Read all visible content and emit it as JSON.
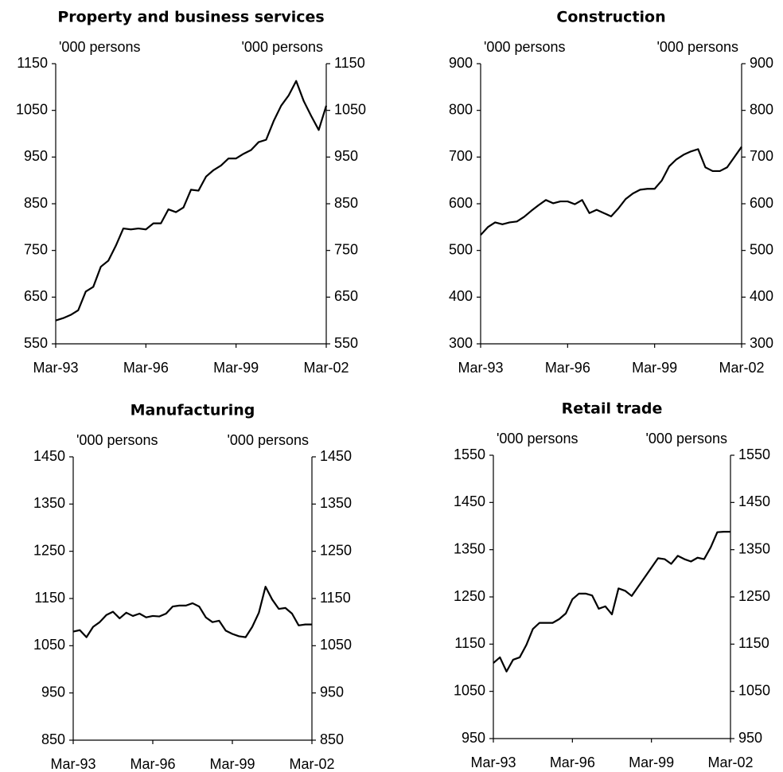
{
  "chart_data": [
    {
      "type": "line",
      "title": "Property and business services",
      "ylabel": "'000 persons",
      "y2label": "'000 persons",
      "categories": [
        "Mar-93",
        null,
        null,
        null,
        null,
        null,
        null,
        null,
        null,
        null,
        null,
        null,
        "Mar-96",
        null,
        null,
        null,
        null,
        null,
        null,
        null,
        null,
        null,
        null,
        null,
        "Mar-99",
        null,
        null,
        null,
        null,
        null,
        null,
        null,
        null,
        null,
        null,
        null,
        "Mar-02"
      ],
      "values": [
        600,
        605,
        612,
        622,
        662,
        672,
        715,
        728,
        760,
        797,
        795,
        797,
        795,
        808,
        808,
        838,
        832,
        842,
        880,
        878,
        908,
        922,
        932,
        947,
        947,
        957,
        965,
        982,
        987,
        1027,
        1060,
        1082,
        1113,
        1070,
        1038,
        1008,
        1060
      ],
      "color": "#000000",
      "ylim": [
        550,
        1150
      ],
      "yticks": [
        550,
        650,
        750,
        850,
        950,
        1050,
        1150
      ],
      "y2lim": [
        550,
        1150
      ],
      "y2ticks": [
        550,
        650,
        750,
        850,
        950,
        1050,
        1150
      ]
    },
    {
      "type": "line",
      "title": "Construction",
      "ylabel": "'000 persons",
      "y2label": "'000 persons",
      "categories": [
        "Mar-93",
        null,
        null,
        null,
        null,
        null,
        null,
        null,
        null,
        null,
        null,
        null,
        "Mar-96",
        null,
        null,
        null,
        null,
        null,
        null,
        null,
        null,
        null,
        null,
        null,
        "Mar-99",
        null,
        null,
        null,
        null,
        null,
        null,
        null,
        null,
        null,
        null,
        null,
        "Mar-02"
      ],
      "values": [
        533,
        550,
        560,
        556,
        560,
        562,
        572,
        585,
        597,
        608,
        601,
        605,
        605,
        599,
        608,
        580,
        587,
        580,
        573,
        590,
        610,
        622,
        630,
        632,
        632,
        650,
        680,
        695,
        705,
        712,
        717,
        678,
        670,
        670,
        678,
        700,
        722
      ],
      "color": "#000000",
      "ylim": [
        300,
        900
      ],
      "yticks": [
        300,
        400,
        500,
        600,
        700,
        800,
        900
      ],
      "y2lim": [
        300,
        900
      ],
      "y2ticks": [
        300,
        400,
        500,
        600,
        700,
        800,
        900
      ]
    },
    {
      "type": "line",
      "title": "Manufacturing",
      "ylabel": "'000 persons",
      "y2label": "'000 persons",
      "categories": [
        "Mar-93",
        null,
        null,
        null,
        null,
        null,
        null,
        null,
        null,
        null,
        null,
        null,
        "Mar-96",
        null,
        null,
        null,
        null,
        null,
        null,
        null,
        null,
        null,
        null,
        null,
        "Mar-99",
        null,
        null,
        null,
        null,
        null,
        null,
        null,
        null,
        null,
        null,
        null,
        "Mar-02"
      ],
      "values": [
        1080,
        1083,
        1068,
        1090,
        1100,
        1115,
        1122,
        1108,
        1120,
        1113,
        1118,
        1110,
        1113,
        1112,
        1118,
        1133,
        1135,
        1135,
        1140,
        1133,
        1110,
        1100,
        1103,
        1082,
        1075,
        1070,
        1068,
        1090,
        1120,
        1175,
        1148,
        1128,
        1130,
        1118,
        1093,
        1095,
        1095
      ],
      "color": "#000000",
      "ylim": [
        850,
        1450
      ],
      "yticks": [
        850,
        950,
        1050,
        1150,
        1250,
        1350,
        1450
      ],
      "y2lim": [
        850,
        1450
      ],
      "y2ticks": [
        850,
        950,
        1050,
        1150,
        1250,
        1350,
        1450
      ]
    },
    {
      "type": "line",
      "title": "Retail trade",
      "ylabel": "'000 persons",
      "y2label": "'000 persons",
      "categories": [
        "Mar-93",
        null,
        null,
        null,
        null,
        null,
        null,
        null,
        null,
        null,
        null,
        null,
        "Mar-96",
        null,
        null,
        null,
        null,
        null,
        null,
        null,
        null,
        null,
        null,
        null,
        "Mar-99",
        null,
        null,
        null,
        null,
        null,
        null,
        null,
        null,
        null,
        null,
        null,
        "Mar-02"
      ],
      "values": [
        1110,
        1122,
        1092,
        1117,
        1122,
        1148,
        1182,
        1195,
        1195,
        1195,
        1203,
        1215,
        1245,
        1257,
        1257,
        1253,
        1225,
        1230,
        1213,
        1268,
        1263,
        1252,
        1272,
        1292,
        1312,
        1332,
        1330,
        1320,
        1337,
        1330,
        1325,
        1333,
        1330,
        1355,
        1387,
        1388,
        1388
      ],
      "color": "#000000",
      "ylim": [
        950,
        1550
      ],
      "yticks": [
        950,
        1050,
        1150,
        1250,
        1350,
        1450,
        1550
      ],
      "y2lim": [
        950,
        1550
      ],
      "y2ticks": [
        950,
        1050,
        1150,
        1250,
        1350,
        1450,
        1550
      ]
    }
  ]
}
